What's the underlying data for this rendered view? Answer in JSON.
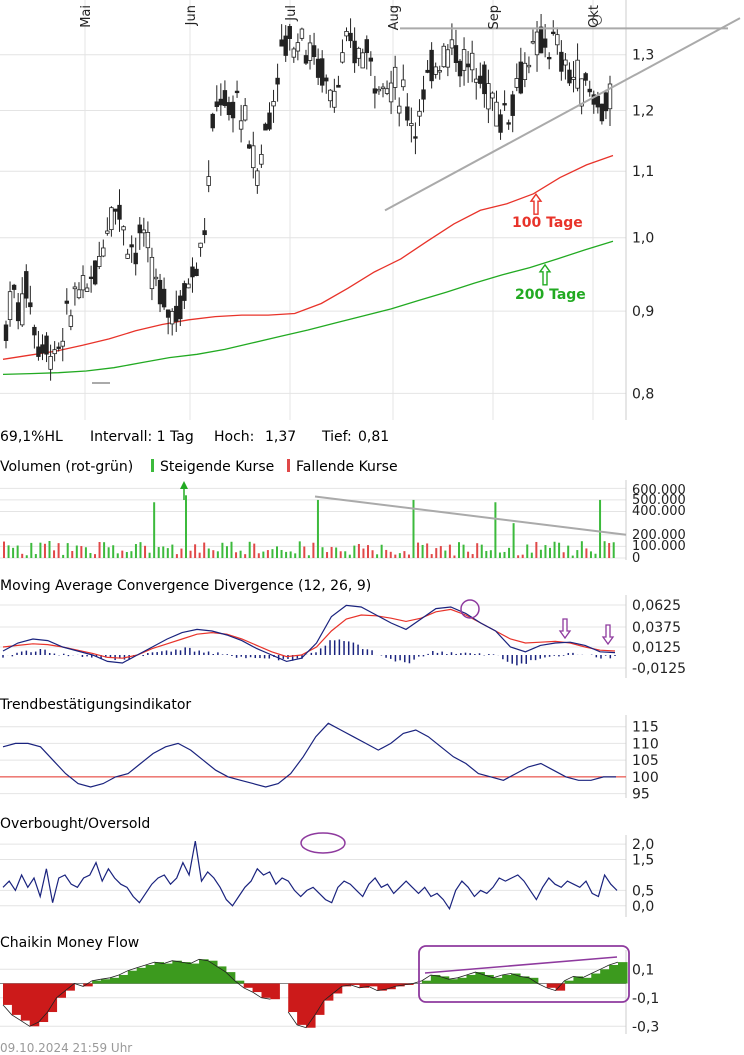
{
  "header": {
    "hl": "69,1%HL",
    "interval": "Intervall: 1 Tag",
    "high_label": "Hoch:",
    "high_value": "1,37",
    "low_label": "Tief:",
    "low_value": "0,81"
  },
  "footer": {
    "timestamp": "09.10.2024 21:59 Uhr"
  },
  "colors": {
    "candle": "#222222",
    "ma100": "#e8332a",
    "ma200": "#22aa22",
    "trend": "#aaaaaa",
    "grid": "#e4e4e4",
    "vol_up": "#3cba3c",
    "vol_down": "#e04848",
    "macd": "#1a237e",
    "signal": "#e8332a",
    "annot": "#8e3a9e",
    "cmf_up": "#3c9a1e",
    "cmf_down": "#cc1a1a"
  },
  "chart_data": [
    {
      "id": "price",
      "type": "candlestick",
      "x_ticks": [
        "Mai",
        "Jun",
        "Jul",
        "Aug",
        "Sep",
        "Okt"
      ],
      "y_ticks": [
        "1,3",
        "1,2",
        "1,1",
        "1,0",
        "0,9",
        "0,8"
      ],
      "y_tick_values": [
        1.3,
        1.2,
        1.1,
        1.0,
        0.9,
        0.8
      ],
      "scale": "log",
      "ylim": [
        0.77,
        1.39
      ],
      "close_path": [
        0.88,
        0.93,
        0.9,
        0.94,
        0.88,
        0.85,
        0.86,
        0.84,
        0.87,
        0.9,
        0.94,
        0.91,
        0.95,
        0.97,
        1.02,
        1.06,
        1.03,
        1.0,
        0.98,
        1.01,
        0.96,
        0.93,
        0.91,
        0.905,
        0.9,
        0.93,
        0.96,
        0.98,
        1.05,
        1.2,
        1.24,
        1.18,
        1.23,
        1.19,
        1.13,
        1.1,
        1.16,
        1.22,
        1.28,
        1.34,
        1.32,
        1.35,
        1.31,
        1.29,
        1.27,
        1.23,
        1.25,
        1.29,
        1.32,
        1.3,
        1.31,
        1.28,
        1.26,
        1.25,
        1.24,
        1.23,
        1.2,
        1.18,
        1.22,
        1.26,
        1.3,
        1.31,
        1.32,
        1.3,
        1.28,
        1.27,
        1.26,
        1.24,
        1.21,
        1.19,
        1.21,
        1.25,
        1.28,
        1.29,
        1.31,
        1.33,
        1.32,
        1.3,
        1.27,
        1.26,
        1.25,
        1.24,
        1.22,
        1.21,
        1.21
      ],
      "ma100_path": [
        0.84,
        0.845,
        0.85,
        0.857,
        0.865,
        0.875,
        0.883,
        0.889,
        0.893,
        0.895,
        0.895,
        0.897,
        0.91,
        0.93,
        0.952,
        0.97,
        0.995,
        1.02,
        1.04,
        1.05,
        1.065,
        1.09,
        1.11,
        1.125
      ],
      "ma200_path": [
        0.822,
        0.823,
        0.824,
        0.826,
        0.83,
        0.836,
        0.842,
        0.846,
        0.852,
        0.86,
        0.868,
        0.876,
        0.885,
        0.894,
        0.903,
        0.914,
        0.925,
        0.937,
        0.948,
        0.958,
        0.97,
        0.983,
        0.995
      ],
      "lines": [
        {
          "name": "resistance",
          "from": [
            "Aug",
            1.35
          ],
          "to": [
            "Okt",
            1.35
          ]
        },
        {
          "name": "uptrend",
          "from": [
            "Aug",
            1.04
          ],
          "to": [
            "Okt",
            1.28
          ]
        }
      ],
      "labels": [
        {
          "text": "100 Tage",
          "series": "ma100",
          "value": 1.055
        },
        {
          "text": "200 Tage",
          "series": "ma200",
          "value": 0.965
        }
      ]
    },
    {
      "id": "volume",
      "type": "bar",
      "title": "Volumen (rot-grün)",
      "legend": [
        "Steigende Kurse",
        "Fallende Kurse"
      ],
      "y_ticks": [
        "600.000",
        "500.000",
        "400.000",
        "200.000",
        "100.000",
        "0"
      ],
      "y_tick_values": [
        600000,
        500000,
        400000,
        200000,
        100000,
        0
      ],
      "ylim": [
        0,
        620000
      ],
      "trend": {
        "from_value": 530000,
        "to_value": 200000
      },
      "notable_up_bars": [
        480000,
        540000,
        500000,
        500000,
        480000,
        300000,
        500000
      ]
    },
    {
      "id": "macd",
      "type": "line",
      "title": "Moving Average Convergence Divergence (12, 26, 9)",
      "y_ticks": [
        "0,0625",
        "0,0375",
        "0,0125",
        "-0,0125"
      ],
      "y_tick_values": [
        0.0625,
        0.0375,
        0.0125,
        -0.0125
      ],
      "ylim": [
        -0.02,
        0.072
      ],
      "macd_path": [
        0.005,
        0.015,
        0.02,
        0.018,
        0.01,
        0.005,
        0.0,
        -0.008,
        -0.01,
        0.0,
        0.01,
        0.02,
        0.028,
        0.032,
        0.03,
        0.025,
        0.018,
        0.008,
        0.0,
        -0.008,
        -0.004,
        0.015,
        0.048,
        0.062,
        0.06,
        0.05,
        0.04,
        0.032,
        0.045,
        0.058,
        0.06,
        0.052,
        0.04,
        0.03,
        0.01,
        0.004,
        0.012,
        0.015,
        0.016,
        0.012,
        0.004,
        0.003
      ],
      "signal_path": [
        0.01,
        0.012,
        0.014,
        0.013,
        0.01,
        0.006,
        0.002,
        -0.003,
        -0.004,
        0.0,
        0.008,
        0.014,
        0.02,
        0.026,
        0.028,
        0.026,
        0.02,
        0.012,
        0.004,
        -0.002,
        0.0,
        0.01,
        0.03,
        0.045,
        0.05,
        0.049,
        0.046,
        0.042,
        0.046,
        0.054,
        0.057,
        0.05,
        0.04,
        0.03,
        0.02,
        0.015,
        0.016,
        0.017,
        0.015,
        0.01,
        0.006,
        0.005
      ]
    },
    {
      "id": "trend_indicator",
      "type": "line",
      "title": "Trendbestätigungsindikator",
      "y_ticks": [
        "115",
        "110",
        "105",
        "100",
        "95"
      ],
      "y_tick_values": [
        115,
        110,
        105,
        100,
        95
      ],
      "ylim": [
        94,
        117
      ],
      "reference": 100,
      "values": [
        109,
        110,
        110,
        109,
        105,
        101,
        98,
        97,
        98,
        100,
        101,
        104,
        107,
        109,
        110,
        108,
        105,
        102,
        100,
        99,
        98,
        97,
        98,
        101,
        106,
        112,
        116,
        114,
        112,
        110,
        108,
        110,
        113,
        114,
        112,
        109,
        106,
        104,
        101,
        100,
        99,
        101,
        103,
        104,
        102,
        100,
        99,
        99,
        100,
        100
      ]
    },
    {
      "id": "overbought_oversold",
      "type": "line",
      "title": "Overbought/Oversold",
      "y_ticks": [
        "2,0",
        "1,5",
        "0,5",
        "0,0"
      ],
      "y_tick_values": [
        2.0,
        1.5,
        0.5,
        0.0
      ],
      "ylim": [
        -0.3,
        2.2
      ],
      "values": [
        0.6,
        0.8,
        0.5,
        1.0,
        0.6,
        0.9,
        0.3,
        1.2,
        0.1,
        0.9,
        1.0,
        0.7,
        0.6,
        0.9,
        1.0,
        1.4,
        0.8,
        1.2,
        0.9,
        0.7,
        0.6,
        0.3,
        0.1,
        0.4,
        0.7,
        0.9,
        1.0,
        0.7,
        0.9,
        1.4,
        1.0,
        2.1,
        0.8,
        1.1,
        0.9,
        0.6,
        0.2,
        0.0,
        0.3,
        0.6,
        0.8,
        1.2,
        1.0,
        1.1,
        0.7,
        0.9,
        0.8,
        0.5,
        0.3,
        0.5,
        0.6,
        0.4,
        0.2,
        0.1,
        0.6,
        0.8,
        0.7,
        0.5,
        0.3,
        0.7,
        0.9,
        0.6,
        0.7,
        0.4,
        0.6,
        0.8,
        0.6,
        0.4,
        0.6,
        0.3,
        0.4,
        0.2,
        -0.1,
        0.5,
        0.8,
        0.6,
        0.3,
        0.5,
        0.4,
        0.6,
        0.9,
        0.8,
        0.9,
        1.0,
        0.8,
        0.5,
        0.2,
        0.6,
        0.9,
        0.7,
        0.6,
        0.8,
        0.7,
        0.6,
        0.8,
        0.4,
        0.3,
        1.0,
        0.7,
        0.5
      ]
    },
    {
      "id": "cmf",
      "type": "area",
      "title": "Chaikin Money Flow",
      "y_ticks": [
        "0,1",
        "-0,1",
        "-0,3"
      ],
      "y_tick_values": [
        0.1,
        -0.1,
        -0.3
      ],
      "ylim": [
        -0.34,
        0.2
      ],
      "values": [
        -0.15,
        -0.22,
        -0.26,
        -0.3,
        -0.27,
        -0.2,
        -0.1,
        -0.05,
        0.0,
        -0.02,
        0.02,
        0.03,
        0.04,
        0.06,
        0.09,
        0.11,
        0.13,
        0.15,
        0.14,
        0.16,
        0.15,
        0.14,
        0.17,
        0.16,
        0.12,
        0.08,
        0.02,
        -0.03,
        -0.06,
        -0.1,
        -0.11,
        null,
        -0.2,
        -0.29,
        -0.31,
        -0.22,
        -0.12,
        -0.07,
        -0.02,
        -0.01,
        -0.03,
        -0.02,
        -0.05,
        -0.04,
        -0.02,
        -0.01,
        0.0,
        0.02,
        0.06,
        0.05,
        0.03,
        0.04,
        0.06,
        0.08,
        0.06,
        0.04,
        0.06,
        0.07,
        0.05,
        0.04,
        0.0,
        -0.03,
        -0.05,
        0.02,
        0.05,
        0.04,
        0.07,
        0.1,
        0.13,
        0.15
      ]
    }
  ]
}
